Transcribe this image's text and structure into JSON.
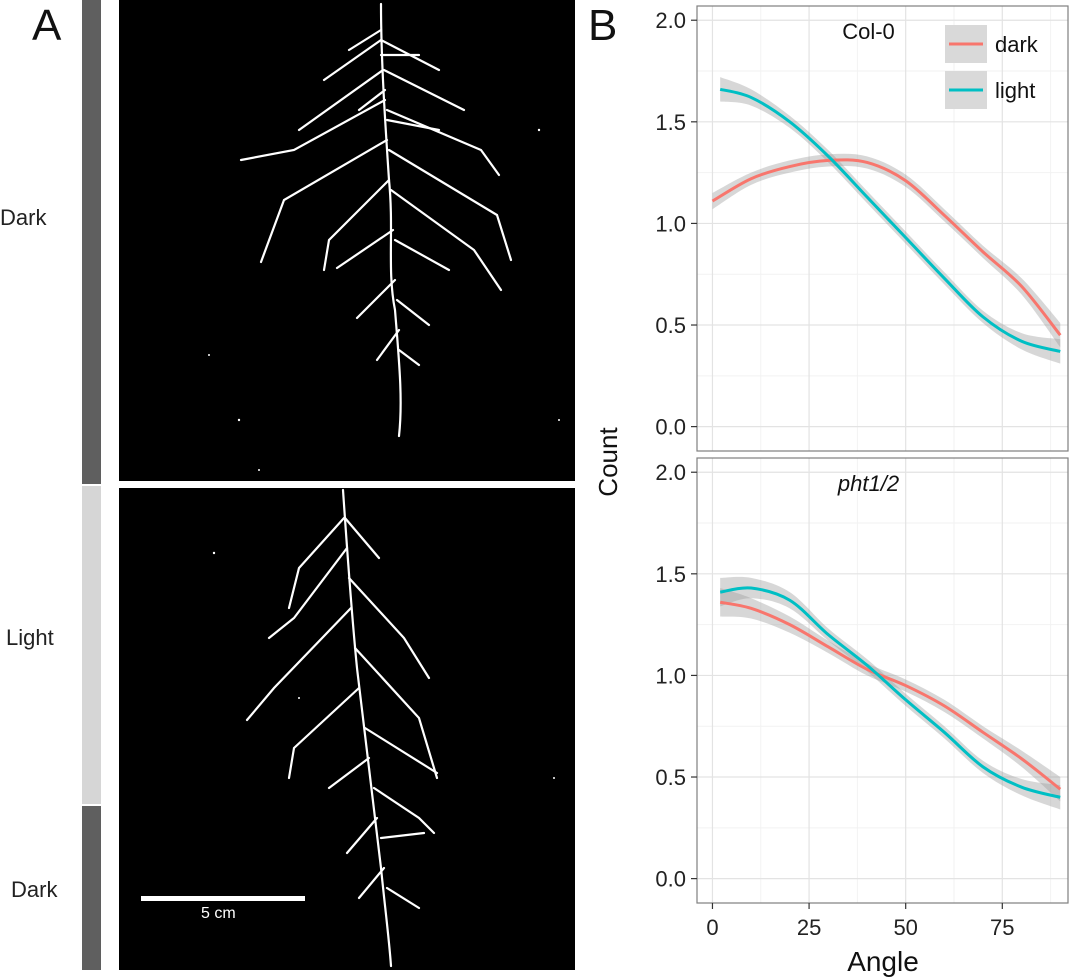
{
  "panel_a": {
    "letter": "A",
    "conditions": [
      "Dark",
      "Light",
      "Dark"
    ],
    "scale_bar_label": "5 cm"
  },
  "panel_b": {
    "letter": "B"
  },
  "colors": {
    "dark": "#F8766D",
    "light": "#00BFC4",
    "band": "#9a9a9a",
    "bar_dark": "#5f5f5f",
    "bar_light": "#d6d6d6"
  },
  "chart_data": {
    "type": "line",
    "xlabel": "Angle",
    "ylabel": "Count",
    "xlim": [
      -4,
      92
    ],
    "ylim": [
      -0.12,
      2.07
    ],
    "xticks": [
      0,
      25,
      50,
      75
    ],
    "yticks": [
      0.0,
      0.5,
      1.0,
      1.5,
      2.0
    ],
    "ytick_labels": [
      "0.0",
      "0.5",
      "1.0",
      "1.5",
      "2.0"
    ],
    "legend": {
      "position": "top-right",
      "entries": [
        "dark",
        "light"
      ]
    },
    "facets": [
      {
        "title": "Col-0",
        "series": [
          {
            "name": "dark",
            "x": [
              0,
              10,
              20,
              30,
              40,
              50,
              60,
              70,
              80,
              90
            ],
            "y": [
              1.11,
              1.22,
              1.28,
              1.31,
              1.3,
              1.21,
              1.04,
              0.86,
              0.69,
              0.45
            ],
            "band": [
              0.04,
              0.03,
              0.03,
              0.03,
              0.03,
              0.03,
              0.03,
              0.03,
              0.04,
              0.06
            ]
          },
          {
            "name": "light",
            "x": [
              2,
              10,
              20,
              30,
              40,
              50,
              60,
              70,
              80,
              90
            ],
            "y": [
              1.66,
              1.62,
              1.5,
              1.33,
              1.13,
              0.93,
              0.73,
              0.54,
              0.42,
              0.37
            ],
            "band": [
              0.06,
              0.04,
              0.03,
              0.03,
              0.03,
              0.03,
              0.03,
              0.03,
              0.04,
              0.06
            ]
          }
        ]
      },
      {
        "title": "pht1/2",
        "series": [
          {
            "name": "dark",
            "x": [
              2,
              10,
              20,
              30,
              40,
              50,
              60,
              70,
              80,
              90
            ],
            "y": [
              1.36,
              1.33,
              1.25,
              1.14,
              1.03,
              0.95,
              0.85,
              0.72,
              0.59,
              0.44
            ],
            "band": [
              0.07,
              0.05,
              0.04,
              0.03,
              0.03,
              0.03,
              0.03,
              0.03,
              0.04,
              0.06
            ]
          },
          {
            "name": "light",
            "x": [
              2,
              10,
              20,
              30,
              40,
              50,
              60,
              70,
              80,
              90
            ],
            "y": [
              1.41,
              1.43,
              1.37,
              1.2,
              1.05,
              0.88,
              0.72,
              0.55,
              0.45,
              0.4
            ],
            "band": [
              0.07,
              0.05,
              0.04,
              0.03,
              0.03,
              0.03,
              0.03,
              0.03,
              0.04,
              0.06
            ]
          }
        ]
      }
    ]
  }
}
